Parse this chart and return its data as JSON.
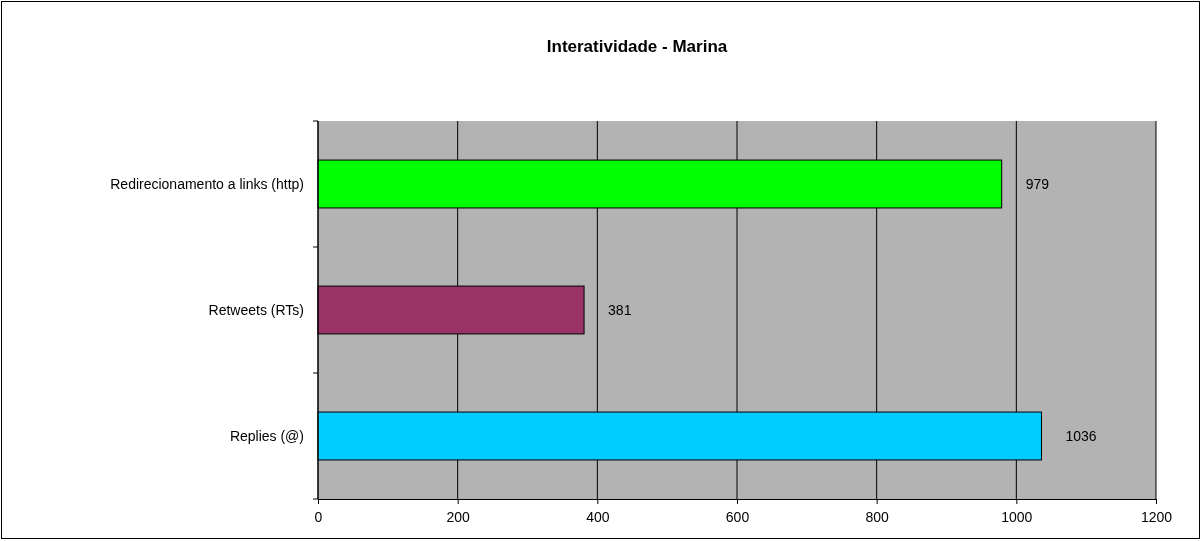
{
  "chart_data": {
    "type": "bar",
    "orientation": "horizontal",
    "title": "Interatividade - Marina",
    "categories": [
      "Redirecionamento a links (http)",
      "Retweets (RTs)",
      "Replies (@)"
    ],
    "values": [
      979,
      381,
      1036
    ],
    "colors": [
      "#00ff00",
      "#993366",
      "#00ccff"
    ],
    "xlim": [
      0,
      1200
    ],
    "xticks": [
      0,
      200,
      400,
      600,
      800,
      1000,
      1200
    ],
    "grid": "x",
    "data_labels": true
  }
}
